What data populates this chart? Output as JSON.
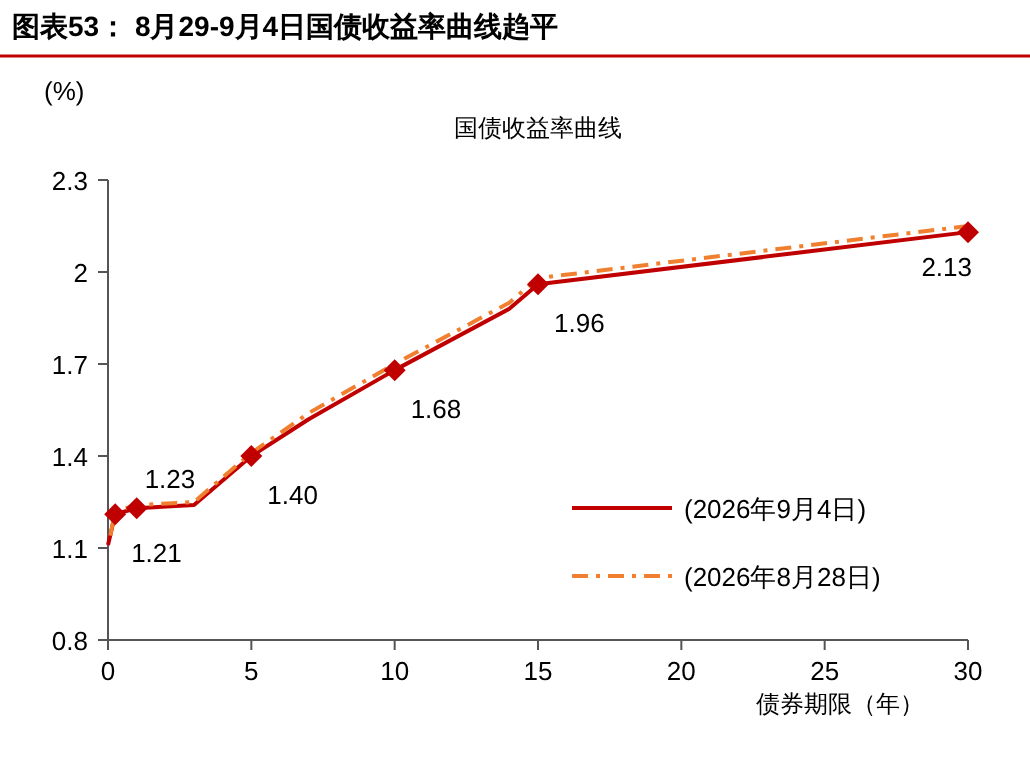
{
  "chart_data": {
    "type": "line",
    "title": "图表53： 8月29-9月4日国债收益率曲线趋平",
    "subtitle": "国债收益率曲线",
    "xlabel": "债券期限（年）",
    "ylabel": "(%)",
    "xlim": [
      0,
      30
    ],
    "xticks": [
      0,
      5,
      10,
      15,
      20,
      25,
      30
    ],
    "ylim": [
      0.8,
      2.3
    ],
    "yticks": [
      0.8,
      1.1,
      1.4,
      1.7,
      2.0,
      2.3
    ],
    "grid": false,
    "legend": "bottom right",
    "series": [
      {
        "name": "(2026年9月4日)",
        "color": "#c00000",
        "line_style": "solid",
        "marker": "none",
        "x": [
          0,
          0.25,
          1,
          3,
          5,
          7,
          10,
          14,
          15,
          30
        ],
        "values": [
          1.11,
          1.21,
          1.23,
          1.24,
          1.4,
          1.52,
          1.68,
          1.88,
          1.96,
          2.13
        ]
      },
      {
        "name": "(2026年8月28日)",
        "color": "#f08030",
        "line_style": "dashed",
        "marker": "none",
        "x": [
          0.08,
          0.25,
          1,
          3,
          5,
          7,
          10,
          14,
          15,
          30
        ],
        "values": [
          1.14,
          1.22,
          1.24,
          1.25,
          1.41,
          1.54,
          1.7,
          1.9,
          1.98,
          2.15
        ]
      },
      {
        "type": "scatter",
        "color": "#c00000",
        "marker": "diamond",
        "x": [
          0.25,
          1,
          5,
          10,
          15,
          30
        ],
        "values": [
          1.21,
          1.23,
          1.4,
          1.68,
          1.96,
          2.13
        ],
        "value_labels": [
          "1.21",
          "1.23",
          "1.40",
          "1.68",
          "1.96",
          "2.13"
        ]
      }
    ]
  }
}
